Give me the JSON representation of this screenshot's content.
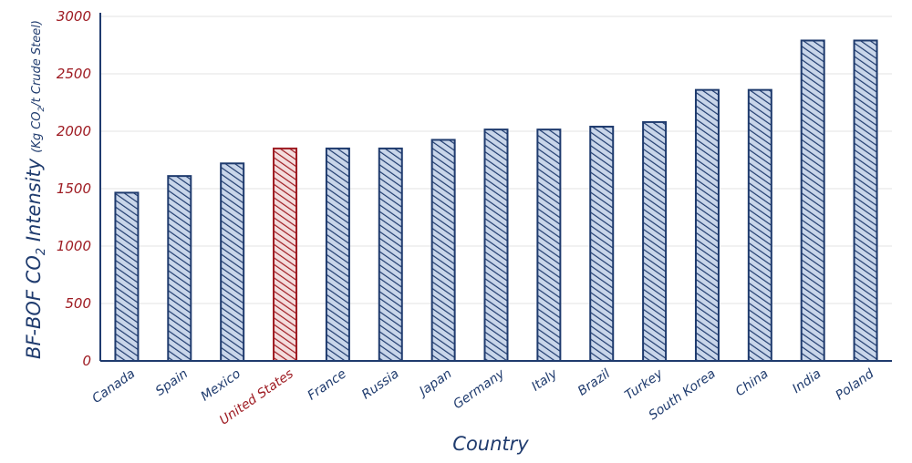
{
  "chart_data": {
    "type": "bar",
    "xlabel": "Country",
    "ylabel": {
      "main": "BF-BOF CO",
      "main_sub": "2",
      "main_after": " Intensity",
      "unit_open": "(Kg CO",
      "unit_sub": "2",
      "unit_close": "/t Crude Steel)"
    },
    "ylim": [
      0,
      3000
    ],
    "yticks": [
      "0",
      "500",
      "1000",
      "1500",
      "2000",
      "2500",
      "3000"
    ],
    "grid": true,
    "categories": [
      "Canada",
      "Spain",
      "Mexico",
      "United States",
      "France",
      "Russia",
      "Japan",
      "Germany",
      "Italy",
      "Brazil",
      "Turkey",
      "South Korea",
      "China",
      "India",
      "Poland"
    ],
    "values": [
      1465,
      1610,
      1720,
      1850,
      1850,
      1850,
      1925,
      2015,
      2015,
      2040,
      2080,
      2360,
      2360,
      2790,
      2790
    ],
    "highlight": "United States",
    "colors": {
      "bar": "#1f3b6e",
      "bar_fill": "#c9d6ea",
      "highlight": "#9e1b22",
      "highlight_fill": "#f3dcdc",
      "axis": "#1f3b6e",
      "tick_text": "#9e1b22",
      "grid": "#e3e3e3"
    }
  }
}
